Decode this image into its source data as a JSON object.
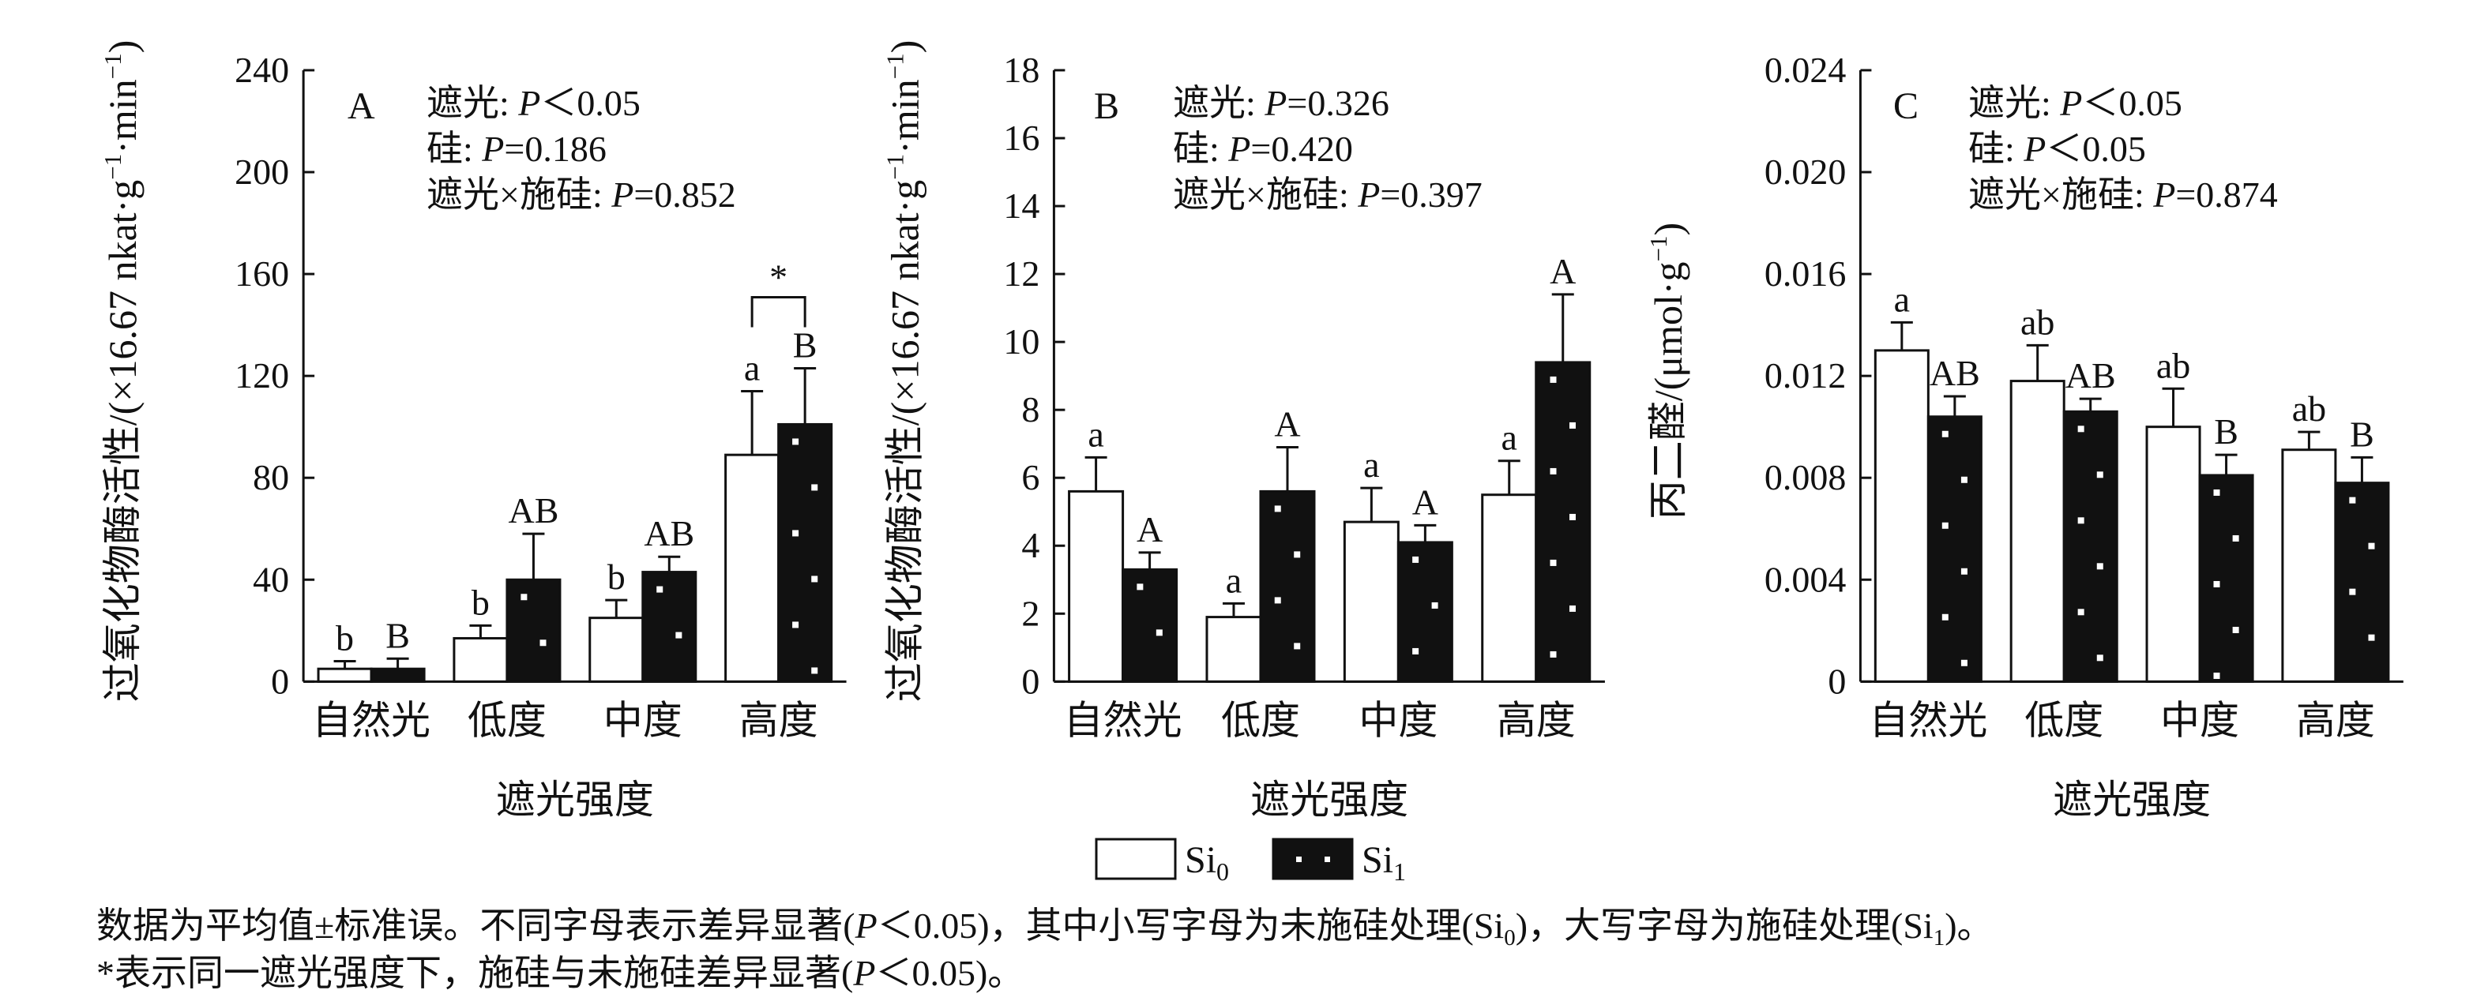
{
  "legend": {
    "si0": {
      "text": "Si",
      "sub": "0"
    },
    "si1": {
      "text": "Si",
      "sub": "1"
    }
  },
  "caption": {
    "line1": [
      {
        "t": "数据为平均值±标准误。不同字母表示差异显著(",
        "style": "normal"
      },
      {
        "t": "P",
        "style": "italic"
      },
      {
        "t": "＜0.05)，其中小写字母为未施硅处理(Si",
        "style": "normal"
      },
      {
        "t": "0",
        "style": "sub"
      },
      {
        "t": ")，大写字母为施硅处理(Si",
        "style": "normal"
      },
      {
        "t": "1",
        "style": "sub"
      },
      {
        "t": ")。",
        "style": "normal"
      }
    ],
    "line2": [
      {
        "t": "*表示同一遮光强度下，施硅与未施硅差异显著(",
        "style": "normal"
      },
      {
        "t": "P",
        "style": "italic"
      },
      {
        "t": "＜0.05)。",
        "style": "normal"
      }
    ]
  },
  "colors": {
    "si0_fill": "#ffffff",
    "si1_fill": "#111111",
    "dot": "#ffffff",
    "stroke": "#111111"
  },
  "chart_data": [
    {
      "type": "bar",
      "panel": "A",
      "categories": [
        "自然光",
        "低度",
        "中度",
        "高度"
      ],
      "xlabel": "遮光强度",
      "ylabel": [
        {
          "t": "过氧化物酶活性/(×16.67 nkat·g",
          "style": "normal"
        },
        {
          "t": "−1",
          "style": "sup"
        },
        {
          "t": "·min",
          "style": "normal"
        },
        {
          "t": "−1",
          "style": "sup"
        },
        {
          "t": ")",
          "style": "normal"
        }
      ],
      "ylim": [
        0,
        240
      ],
      "yticks": [
        "0",
        "40",
        "80",
        "120",
        "160",
        "200",
        "240"
      ],
      "stats": [
        [
          {
            "t": "遮光: ",
            "style": "normal"
          },
          {
            "t": "P",
            "style": "italic"
          },
          {
            "t": "＜0.05",
            "style": "normal"
          }
        ],
        [
          {
            "t": "硅: ",
            "style": "normal"
          },
          {
            "t": "P",
            "style": "italic"
          },
          {
            "t": "=0.186",
            "style": "normal"
          }
        ],
        [
          {
            "t": "遮光×施硅: ",
            "style": "normal"
          },
          {
            "t": "P",
            "style": "italic"
          },
          {
            "t": "=0.852",
            "style": "normal"
          }
        ]
      ],
      "series": [
        {
          "name": "Si0",
          "values": [
            5,
            17,
            25,
            89
          ],
          "errors": [
            3,
            5,
            7,
            25
          ],
          "letters": [
            "b",
            "b",
            "b",
            "a"
          ]
        },
        {
          "name": "Si1",
          "values": [
            5,
            40,
            43,
            101
          ],
          "errors": [
            4,
            18,
            6,
            22
          ],
          "letters": [
            "B",
            "AB",
            "AB",
            "B"
          ]
        }
      ],
      "significance": [
        {
          "category_index": 3,
          "label": "*"
        }
      ]
    },
    {
      "type": "bar",
      "panel": "B",
      "categories": [
        "自然光",
        "低度",
        "中度",
        "高度"
      ],
      "xlabel": "遮光强度",
      "ylabel": [
        {
          "t": "过氧化物酶活性/(×16.67 nkat·g",
          "style": "normal"
        },
        {
          "t": "−1",
          "style": "sup"
        },
        {
          "t": "·min",
          "style": "normal"
        },
        {
          "t": "−1",
          "style": "sup"
        },
        {
          "t": ")",
          "style": "normal"
        }
      ],
      "ylim": [
        0,
        18
      ],
      "yticks": [
        "0",
        "2",
        "4",
        "6",
        "8",
        "10",
        "12",
        "14",
        "16",
        "18"
      ],
      "stats": [
        [
          {
            "t": "遮光: ",
            "style": "normal"
          },
          {
            "t": "P",
            "style": "italic"
          },
          {
            "t": "=0.326",
            "style": "normal"
          }
        ],
        [
          {
            "t": "硅: ",
            "style": "normal"
          },
          {
            "t": "P",
            "style": "italic"
          },
          {
            "t": "=0.420",
            "style": "normal"
          }
        ],
        [
          {
            "t": "遮光×施硅: ",
            "style": "normal"
          },
          {
            "t": "P",
            "style": "italic"
          },
          {
            "t": "=0.397",
            "style": "normal"
          }
        ]
      ],
      "series": [
        {
          "name": "Si0",
          "values": [
            5.6,
            1.9,
            4.7,
            5.5
          ],
          "errors": [
            1.0,
            0.4,
            1.0,
            1.0
          ],
          "letters": [
            "a",
            "a",
            "a",
            "a"
          ]
        },
        {
          "name": "Si1",
          "values": [
            3.3,
            5.6,
            4.1,
            9.4
          ],
          "errors": [
            0.5,
            1.3,
            0.5,
            2.0
          ],
          "letters": [
            "A",
            "A",
            "A",
            "A"
          ]
        }
      ],
      "significance": []
    },
    {
      "type": "bar",
      "panel": "C",
      "categories": [
        "自然光",
        "低度",
        "中度",
        "高度"
      ],
      "xlabel": "遮光强度",
      "ylabel": [
        {
          "t": "丙二醛/(μmol·g",
          "style": "normal"
        },
        {
          "t": "−1",
          "style": "sup"
        },
        {
          "t": ")",
          "style": "normal"
        }
      ],
      "ylim": [
        0,
        0.024
      ],
      "yticks": [
        "0",
        "0.004",
        "0.008",
        "0.012",
        "0.016",
        "0.020",
        "0.024"
      ],
      "stats": [
        [
          {
            "t": "遮光: ",
            "style": "normal"
          },
          {
            "t": "P",
            "style": "italic"
          },
          {
            "t": "＜0.05",
            "style": "normal"
          }
        ],
        [
          {
            "t": "硅: ",
            "style": "normal"
          },
          {
            "t": "P",
            "style": "italic"
          },
          {
            "t": "＜0.05",
            "style": "normal"
          }
        ],
        [
          {
            "t": "遮光×施硅: ",
            "style": "normal"
          },
          {
            "t": "P",
            "style": "italic"
          },
          {
            "t": "=0.874",
            "style": "normal"
          }
        ]
      ],
      "series": [
        {
          "name": "Si0",
          "values": [
            0.013,
            0.0118,
            0.01,
            0.0091
          ],
          "errors": [
            0.0011,
            0.0014,
            0.0015,
            0.0007
          ],
          "letters": [
            "a",
            "ab",
            "ab",
            "ab"
          ]
        },
        {
          "name": "Si1",
          "values": [
            0.0104,
            0.0106,
            0.0081,
            0.0078
          ],
          "errors": [
            0.0008,
            0.0005,
            0.0008,
            0.001
          ],
          "letters": [
            "AB",
            "AB",
            "B",
            "B"
          ]
        }
      ],
      "significance": []
    }
  ]
}
